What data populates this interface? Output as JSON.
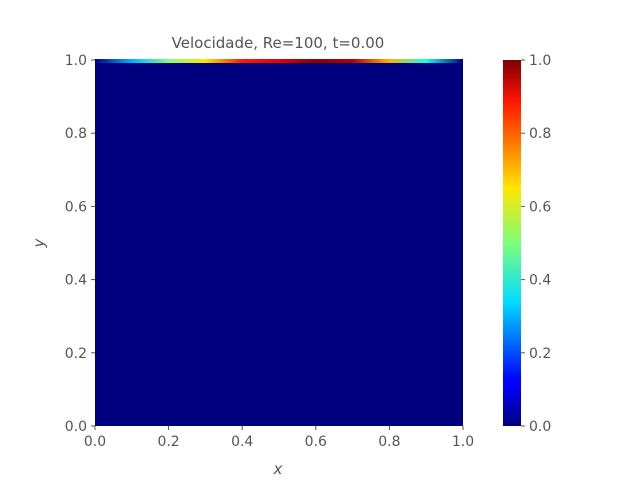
{
  "chart_data": {
    "type": "heatmap",
    "title": "Velocidade, Re=100, t=0.00",
    "xlabel": "x",
    "ylabel": "y",
    "xlim": [
      0.0,
      1.0
    ],
    "ylim": [
      0.0,
      1.0
    ],
    "x_ticks": [
      "0.0",
      "0.2",
      "0.4",
      "0.6",
      "0.8",
      "1.0"
    ],
    "y_ticks": [
      "0.0",
      "0.2",
      "0.4",
      "0.6",
      "0.8",
      "1.0"
    ],
    "colorbar": {
      "colormap": "jet",
      "range": [
        0.0,
        1.0
      ],
      "ticks": [
        "0.0",
        "0.2",
        "0.4",
        "0.6",
        "0.8",
        "1.0"
      ]
    },
    "field": {
      "background_value": 0.0,
      "top_lid_profile": {
        "x": [
          0.0,
          0.1,
          0.2,
          0.3,
          0.4,
          0.5,
          0.6,
          0.7,
          0.8,
          0.9,
          1.0
        ],
        "value": [
          0.0,
          0.3,
          0.5,
          0.65,
          0.85,
          0.9,
          1.0,
          0.95,
          0.7,
          0.4,
          0.0
        ]
      }
    },
    "grid": false
  },
  "colors": {
    "background": "#ffffff",
    "text": "#555555",
    "field_min": "#00007f"
  }
}
